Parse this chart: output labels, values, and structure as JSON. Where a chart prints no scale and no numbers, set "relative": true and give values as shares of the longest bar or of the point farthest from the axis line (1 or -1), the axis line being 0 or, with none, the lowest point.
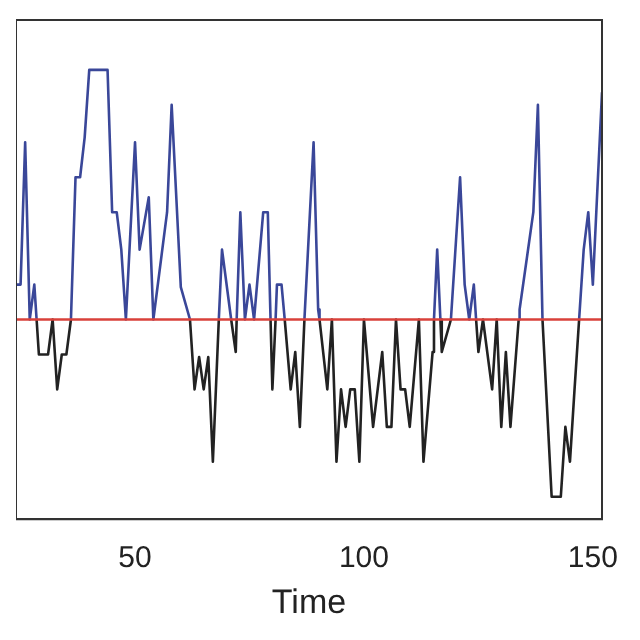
{
  "chart_data": {
    "type": "line",
    "xlabel": "Time",
    "relative": true,
    "xlim": [
      24,
      152
    ],
    "xticks": [
      50,
      100,
      150
    ],
    "grid": false,
    "legend": false,
    "marker": "none",
    "line_style": "solid",
    "ref_lines": [
      {
        "axis": "y",
        "value": 0,
        "color": "#d9413a"
      }
    ],
    "series": [
      {
        "color": "#3a4799",
        "x": [
          24,
          25,
          26,
          27,
          28,
          28.5,
          30,
          36,
          37,
          38,
          39,
          40,
          44,
          45,
          46,
          47,
          48,
          50,
          51,
          53,
          54,
          57,
          58,
          60,
          62,
          65,
          68.3,
          69,
          71,
          71.5,
          72.2,
          73,
          74,
          75,
          76,
          78,
          79,
          79.6,
          80,
          80.7,
          81,
          82,
          82.7,
          85,
          87,
          89,
          90,
          90.3,
          100,
          115.3,
          116,
          116.7,
          118,
          119,
          121,
          122,
          123,
          124,
          124.5,
          130,
          133.8,
          134,
          137,
          138,
          139,
          143,
          147,
          148,
          149,
          150,
          152
        ],
        "values": [
          0.14,
          0.14,
          0.71,
          0,
          0.14,
          0,
          null,
          0,
          0.57,
          0.57,
          0.73,
          1,
          1,
          0.43,
          0.43,
          0.28,
          0,
          0.71,
          0.28,
          0.49,
          0,
          0.43,
          0.86,
          0.13,
          0,
          null,
          0,
          0.28,
          0,
          null,
          0,
          0.43,
          0,
          0.14,
          0,
          0.43,
          0.43,
          0,
          null,
          0,
          0.14,
          0.14,
          0,
          null,
          0,
          0.71,
          0.04,
          0,
          null,
          0,
          0.28,
          0,
          null,
          0,
          0.57,
          0.14,
          0,
          0.14,
          0,
          null,
          0,
          0.04,
          0.43,
          0.86,
          0,
          null,
          0,
          0.28,
          0.43,
          0.14,
          0.91
        ]
      },
      {
        "color": "#222222",
        "x": [
          28.5,
          29,
          31,
          32,
          33,
          34,
          35,
          36,
          40,
          62,
          63,
          64,
          65,
          66,
          67,
          68.3,
          69,
          71,
          72,
          72.2,
          76,
          79.6,
          80,
          80.7,
          81,
          82.7,
          84,
          85,
          86,
          87,
          88,
          90.3,
          92,
          93,
          94,
          95,
          96,
          97,
          98,
          99,
          100,
          102,
          104,
          105,
          106,
          107,
          108,
          109,
          110,
          112,
          113,
          115,
          115.3,
          116,
          116.7,
          117,
          119,
          120,
          124.5,
          125,
          126,
          128,
          129,
          130,
          131,
          132,
          133.8,
          135,
          139,
          141,
          143,
          144,
          145,
          146,
          147
        ],
        "values": [
          0,
          -0.14,
          -0.14,
          0,
          -0.28,
          -0.14,
          -0.14,
          0,
          null,
          0,
          -0.28,
          -0.15,
          -0.28,
          -0.15,
          -0.57,
          0,
          null,
          0,
          -0.13,
          0,
          null,
          0,
          -0.28,
          0,
          null,
          0,
          -0.28,
          -0.13,
          -0.43,
          0,
          null,
          0,
          -0.28,
          0,
          -0.57,
          -0.28,
          -0.43,
          -0.28,
          -0.28,
          -0.57,
          0,
          -0.43,
          -0.13,
          -0.43,
          -0.43,
          0,
          -0.28,
          -0.28,
          -0.43,
          0,
          -0.57,
          -0.13,
          0,
          null,
          0,
          -0.13,
          0,
          null,
          0,
          -0.13,
          0,
          -0.28,
          0,
          -0.43,
          -0.13,
          -0.43,
          0,
          null,
          0,
          -0.71,
          -0.71,
          -0.43,
          -0.57,
          -0.28,
          0
        ]
      }
    ]
  }
}
